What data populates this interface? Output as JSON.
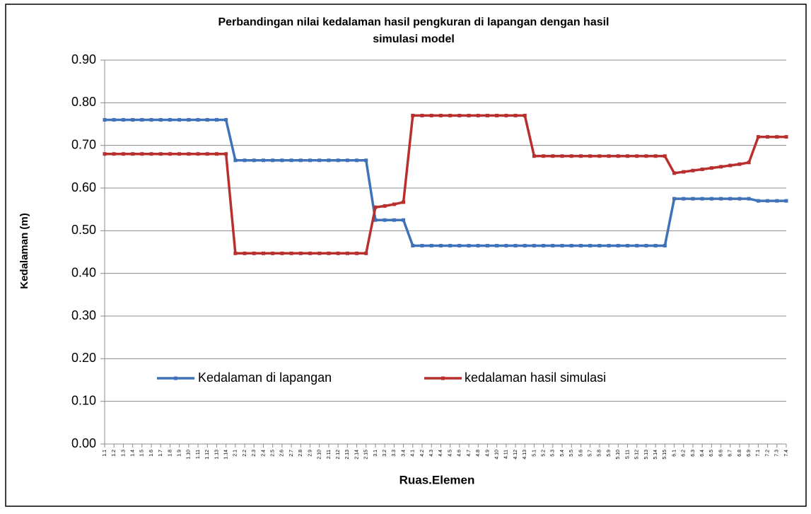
{
  "chart_data": {
    "type": "line",
    "title": "Perbandingan nilai kedalaman hasil pengkuran di lapangan dengan hasil simulasi model",
    "x_label": "Ruas.Elemen",
    "y_label": "Kedalaman (m)",
    "categories": [
      "1.1",
      "1.2",
      "1.3",
      "1.4",
      "1.5",
      "1.6",
      "1.7",
      "1.8",
      "1.9",
      "1.10",
      "1.11",
      "1.12",
      "1.13",
      "1.14",
      "2.1",
      "2.2",
      "2.3",
      "2.4",
      "2.5",
      "2.6",
      "2.7",
      "2.8",
      "2.9",
      "2.10",
      "2.11",
      "2.12",
      "2.13",
      "2.14",
      "2.15",
      "3.1",
      "3.2",
      "3.3",
      "3.4",
      "4.1",
      "4.2",
      "4.3",
      "4.4",
      "4.5",
      "4.6",
      "4.7",
      "4.8",
      "4.9",
      "4.10",
      "4.11",
      "4.12",
      "4.13",
      "5.1",
      "5.2",
      "5.3",
      "5.4",
      "5.5",
      "5.6",
      "5.7",
      "5.8",
      "5.9",
      "5.10",
      "5.11",
      "5.12",
      "5.13",
      "5.14",
      "5.15",
      "6.1",
      "6.2",
      "6.3",
      "6.4",
      "6.5",
      "6.6",
      "6.7",
      "6.8",
      "6.9",
      "7.1",
      "7.2",
      "7.3",
      "7.4"
    ],
    "series": [
      {
        "name": "Kedalaman di lapangan",
        "color": "#3f72b8",
        "values": [
          0.76,
          0.76,
          0.76,
          0.76,
          0.76,
          0.76,
          0.76,
          0.76,
          0.76,
          0.76,
          0.76,
          0.76,
          0.76,
          0.76,
          0.665,
          0.665,
          0.665,
          0.665,
          0.665,
          0.665,
          0.665,
          0.665,
          0.665,
          0.665,
          0.665,
          0.665,
          0.665,
          0.665,
          0.665,
          0.525,
          0.525,
          0.525,
          0.525,
          0.465,
          0.465,
          0.465,
          0.465,
          0.465,
          0.465,
          0.465,
          0.465,
          0.465,
          0.465,
          0.465,
          0.465,
          0.465,
          0.465,
          0.465,
          0.465,
          0.465,
          0.465,
          0.465,
          0.465,
          0.465,
          0.465,
          0.465,
          0.465,
          0.465,
          0.465,
          0.465,
          0.465,
          0.575,
          0.575,
          0.575,
          0.575,
          0.575,
          0.575,
          0.575,
          0.575,
          0.575,
          0.57,
          0.57,
          0.57,
          0.57
        ]
      },
      {
        "name": "kedalaman hasil simulasi",
        "color": "#b8302e",
        "values": [
          0.68,
          0.68,
          0.68,
          0.68,
          0.68,
          0.68,
          0.68,
          0.68,
          0.68,
          0.68,
          0.68,
          0.68,
          0.68,
          0.68,
          0.447,
          0.447,
          0.447,
          0.447,
          0.447,
          0.447,
          0.447,
          0.447,
          0.447,
          0.447,
          0.447,
          0.447,
          0.447,
          0.447,
          0.447,
          0.555,
          0.558,
          0.562,
          0.567,
          0.77,
          0.77,
          0.77,
          0.77,
          0.77,
          0.77,
          0.77,
          0.77,
          0.77,
          0.77,
          0.77,
          0.77,
          0.77,
          0.675,
          0.675,
          0.675,
          0.675,
          0.675,
          0.675,
          0.675,
          0.675,
          0.675,
          0.675,
          0.675,
          0.675,
          0.675,
          0.675,
          0.675,
          0.635,
          0.638,
          0.641,
          0.644,
          0.647,
          0.65,
          0.653,
          0.656,
          0.66,
          0.72,
          0.72,
          0.72,
          0.72
        ]
      }
    ],
    "ylim": [
      0,
      0.9
    ],
    "yticks": [
      {
        "value": 0,
        "label": "0.00"
      },
      {
        "value": 0.1,
        "label": "0.10"
      },
      {
        "value": 0.2,
        "label": "0.20"
      },
      {
        "value": 0.3,
        "label": "0.30"
      },
      {
        "value": 0.4,
        "label": "0.40"
      },
      {
        "value": 0.5,
        "label": "0.50"
      },
      {
        "value": 0.6,
        "label": "0.60"
      },
      {
        "value": 0.7,
        "label": "0.70"
      },
      {
        "value": 0.8,
        "label": "0.80"
      },
      {
        "value": 0.9,
        "label": "0.90"
      }
    ],
    "grid": true
  }
}
